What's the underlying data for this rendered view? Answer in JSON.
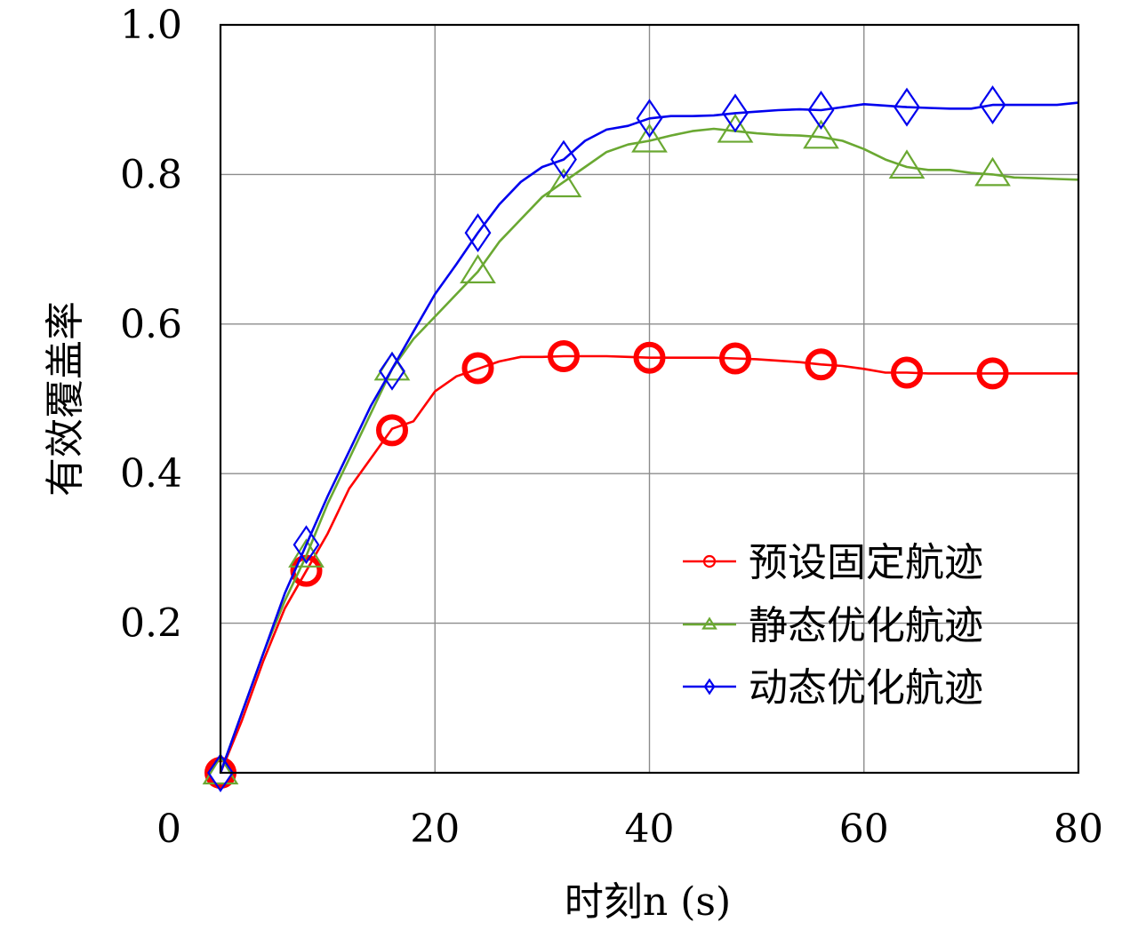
{
  "chart_data": {
    "type": "line",
    "title": "",
    "xlabel": "时刻n (s)",
    "ylabel": "有效覆盖率",
    "xlim": [
      0,
      80
    ],
    "ylim": [
      0,
      1.0
    ],
    "x_ticks": [
      0,
      20,
      40,
      60,
      80
    ],
    "x_tick_labels": [
      "0",
      "20",
      "40",
      "60",
      "80"
    ],
    "y_ticks": [
      0.2,
      0.4,
      0.6,
      0.8,
      1.0
    ],
    "y_tick_labels": [
      "0.2",
      "0.4",
      "0.6",
      "0.8",
      "1.0"
    ],
    "grid": true,
    "legend": {
      "placement": "bottom-right",
      "entries": [
        "预设固定航迹",
        "静态优化航迹",
        "动态优化航迹"
      ]
    },
    "series": [
      {
        "name": "预设固定航迹",
        "color": "#ff0000",
        "marker": "circle",
        "x": [
          0,
          2,
          4,
          6,
          8,
          10,
          12,
          14,
          16,
          18,
          20,
          22,
          24,
          26,
          28,
          30,
          32,
          34,
          36,
          38,
          40,
          42,
          44,
          46,
          48,
          50,
          52,
          54,
          56,
          58,
          60,
          62,
          64,
          66,
          68,
          70,
          72,
          74,
          76,
          78,
          80
        ],
        "values": [
          0.0,
          0.07,
          0.15,
          0.22,
          0.27,
          0.32,
          0.38,
          0.42,
          0.46,
          0.47,
          0.51,
          0.53,
          0.54,
          0.55,
          0.556,
          0.556,
          0.557,
          0.557,
          0.557,
          0.556,
          0.555,
          0.555,
          0.555,
          0.555,
          0.554,
          0.553,
          0.551,
          0.549,
          0.546,
          0.544,
          0.54,
          0.535,
          0.535,
          0.534,
          0.534,
          0.534,
          0.534,
          0.534,
          0.534,
          0.534,
          0.534
        ],
        "marker_x": [
          0,
          8,
          16,
          24,
          32,
          40,
          48,
          56,
          64,
          72
        ],
        "marker_values": [
          0.0,
          0.27,
          0.458,
          0.541,
          0.557,
          0.555,
          0.554,
          0.546,
          0.535,
          0.534
        ]
      },
      {
        "name": "静态优化航迹",
        "color": "#6aa832",
        "marker": "triangle",
        "x": [
          0,
          2,
          4,
          6,
          8,
          10,
          12,
          14,
          16,
          18,
          20,
          22,
          24,
          26,
          28,
          30,
          32,
          34,
          36,
          38,
          40,
          42,
          44,
          46,
          48,
          50,
          52,
          54,
          56,
          58,
          60,
          62,
          64,
          66,
          68,
          70,
          72,
          74,
          76,
          78,
          80
        ],
        "values": [
          0.0,
          0.08,
          0.16,
          0.23,
          0.29,
          0.36,
          0.42,
          0.48,
          0.54,
          0.58,
          0.61,
          0.64,
          0.67,
          0.71,
          0.74,
          0.77,
          0.79,
          0.81,
          0.83,
          0.84,
          0.845,
          0.852,
          0.858,
          0.861,
          0.858,
          0.855,
          0.853,
          0.852,
          0.85,
          0.845,
          0.834,
          0.82,
          0.81,
          0.806,
          0.806,
          0.802,
          0.8,
          0.796,
          0.795,
          0.794,
          0.793
        ],
        "marker_x": [
          0,
          8,
          16,
          24,
          32,
          40,
          48,
          56,
          64,
          72
        ],
        "marker_values": [
          0.0,
          0.29,
          0.54,
          0.67,
          0.785,
          0.845,
          0.858,
          0.85,
          0.81,
          0.8
        ]
      },
      {
        "name": "动态优化航迹",
        "color": "#0000ee",
        "marker": "diamond",
        "x": [
          0,
          2,
          4,
          6,
          8,
          10,
          12,
          14,
          16,
          18,
          20,
          22,
          24,
          26,
          28,
          30,
          32,
          34,
          36,
          38,
          40,
          42,
          44,
          46,
          48,
          50,
          52,
          54,
          56,
          58,
          60,
          62,
          64,
          66,
          68,
          70,
          72,
          74,
          76,
          78,
          80
        ],
        "values": [
          0.0,
          0.08,
          0.16,
          0.24,
          0.305,
          0.37,
          0.43,
          0.49,
          0.54,
          0.59,
          0.64,
          0.68,
          0.722,
          0.76,
          0.79,
          0.81,
          0.82,
          0.845,
          0.86,
          0.865,
          0.875,
          0.878,
          0.878,
          0.879,
          0.882,
          0.884,
          0.886,
          0.887,
          0.886,
          0.89,
          0.894,
          0.892,
          0.89,
          0.889,
          0.888,
          0.888,
          0.893,
          0.893,
          0.893,
          0.893,
          0.896
        ],
        "marker_x": [
          0,
          8,
          16,
          24,
          32,
          40,
          48,
          56,
          64,
          72
        ],
        "marker_values": [
          0.0,
          0.305,
          0.537,
          0.722,
          0.82,
          0.875,
          0.882,
          0.886,
          0.89,
          0.893
        ]
      }
    ]
  }
}
